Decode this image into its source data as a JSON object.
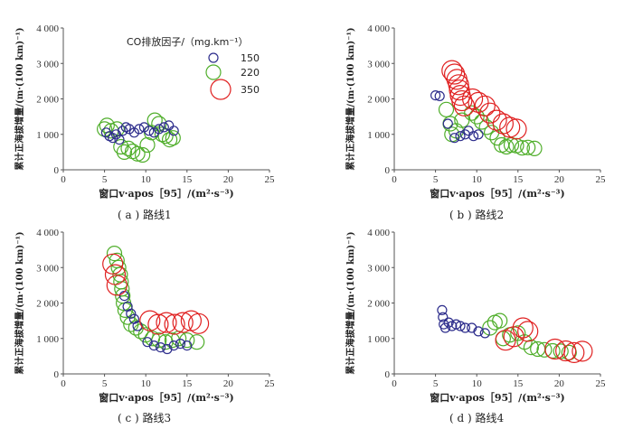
{
  "legend": {
    "title": "CO排放因子/（mg.km⁻¹）",
    "items": [
      {
        "label": "150",
        "color": "#2d2d8c",
        "value": 150
      },
      {
        "label": "220",
        "color": "#4fae2a",
        "value": 220
      },
      {
        "label": "350",
        "color": "#e02020",
        "value": 350
      }
    ]
  },
  "chart_data": [
    {
      "type": "scatter",
      "id": "a",
      "caption": "( a ) 路线1",
      "xlabel": "窗口v·apos［95］/(m²·s⁻³)",
      "ylabel": "累计正海拔增量/(m·(100 km)⁻¹)",
      "xlim": [
        0,
        25
      ],
      "ylim": [
        0,
        4000
      ],
      "xticks": [
        "0",
        "5",
        "10",
        "15",
        "20",
        "25"
      ],
      "yticks": [
        "0",
        "1 000",
        "2 000",
        "3 000",
        "4 000"
      ],
      "series": [
        {
          "name": "150",
          "points": [
            [
              5.2,
              1050
            ],
            [
              5.6,
              950
            ],
            [
              6.0,
              900
            ],
            [
              6.4,
              1000
            ],
            [
              6.8,
              850
            ],
            [
              7.2,
              1100
            ],
            [
              7.6,
              1200
            ],
            [
              8.0,
              1150
            ],
            [
              8.6,
              1050
            ],
            [
              9.2,
              1150
            ],
            [
              9.8,
              1200
            ],
            [
              10.4,
              1100
            ],
            [
              11.0,
              1050
            ],
            [
              11.6,
              1150
            ],
            [
              12.2,
              1200
            ],
            [
              12.8,
              1250
            ],
            [
              13.4,
              1100
            ]
          ]
        },
        {
          "name": "220",
          "points": [
            [
              5.0,
              1150
            ],
            [
              5.3,
              1250
            ],
            [
              5.8,
              1100
            ],
            [
              6.5,
              1150
            ],
            [
              7.0,
              650
            ],
            [
              7.4,
              500
            ],
            [
              7.9,
              600
            ],
            [
              8.4,
              520
            ],
            [
              9.0,
              450
            ],
            [
              9.6,
              420
            ],
            [
              10.2,
              700
            ],
            [
              10.7,
              1050
            ],
            [
              11.1,
              1400
            ],
            [
              11.6,
              1300
            ],
            [
              12.0,
              1000
            ],
            [
              12.4,
              950
            ],
            [
              12.9,
              850
            ],
            [
              13.3,
              900
            ]
          ]
        },
        {
          "name": "350",
          "points": []
        }
      ]
    },
    {
      "type": "scatter",
      "id": "b",
      "caption": "( b ) 路线2",
      "xlabel": "窗口v·apos［95］/(m²·s⁻³)",
      "ylabel": "累计正海拔增量/(m·(100 km)⁻¹)",
      "xlim": [
        0,
        25
      ],
      "ylim": [
        0,
        4000
      ],
      "xticks": [
        "0",
        "5",
        "10",
        "15",
        "20",
        "25"
      ],
      "yticks": [
        "0",
        "1 000",
        "2 000",
        "3 000",
        "4 000"
      ],
      "series": [
        {
          "name": "150",
          "points": [
            [
              5.0,
              2100
            ],
            [
              5.5,
              2080
            ],
            [
              6.5,
              1300
            ],
            [
              7.3,
              900
            ],
            [
              8.0,
              950
            ],
            [
              8.6,
              1000
            ],
            [
              9.0,
              1100
            ],
            [
              9.6,
              950
            ],
            [
              10.2,
              1000
            ]
          ]
        },
        {
          "name": "220",
          "points": [
            [
              6.3,
              1700
            ],
            [
              6.8,
              1300
            ],
            [
              7.0,
              1000
            ],
            [
              7.5,
              1100
            ],
            [
              8.2,
              1400
            ],
            [
              9.4,
              1600
            ],
            [
              10.0,
              1500
            ],
            [
              10.6,
              1350
            ],
            [
              11.2,
              1200
            ],
            [
              11.8,
              1050
            ],
            [
              12.5,
              900
            ],
            [
              13.0,
              700
            ],
            [
              13.6,
              650
            ],
            [
              14.2,
              700
            ],
            [
              14.8,
              680
            ],
            [
              15.5,
              620
            ],
            [
              16.2,
              630
            ],
            [
              17.0,
              600
            ]
          ]
        },
        {
          "name": "350",
          "points": [
            [
              7.0,
              2800
            ],
            [
              7.3,
              2700
            ],
            [
              7.6,
              2550
            ],
            [
              7.8,
              2400
            ],
            [
              7.9,
              2250
            ],
            [
              8.0,
              2100
            ],
            [
              8.2,
              1950
            ],
            [
              8.5,
              1800
            ],
            [
              9.5,
              2000
            ],
            [
              10.2,
              1900
            ],
            [
              11.0,
              1800
            ],
            [
              11.6,
              1600
            ],
            [
              12.4,
              1400
            ],
            [
              13.2,
              1300
            ],
            [
              14.0,
              1200
            ],
            [
              14.8,
              1150
            ]
          ]
        }
      ]
    },
    {
      "type": "scatter",
      "id": "c",
      "caption": "( c ) 路线3",
      "xlabel": "窗口v·apos［95］/(m²·s⁻³)",
      "ylabel": "累计正海拔增量/(m·(100 km)⁻¹)",
      "xlim": [
        0,
        25
      ],
      "ylim": [
        0,
        4000
      ],
      "xticks": [
        "0",
        "5",
        "10",
        "15",
        "20",
        "25"
      ],
      "yticks": [
        "0",
        "1 000",
        "2 000",
        "3 000",
        "4 000"
      ],
      "series": [
        {
          "name": "150",
          "points": [
            [
              7.4,
              2200
            ],
            [
              7.8,
              1900
            ],
            [
              8.2,
              1700
            ],
            [
              8.6,
              1550
            ],
            [
              9.0,
              1350
            ],
            [
              10.2,
              900
            ],
            [
              11.0,
              800
            ],
            [
              11.8,
              750
            ],
            [
              12.6,
              700
            ],
            [
              13.4,
              800
            ],
            [
              14.2,
              850
            ],
            [
              15.0,
              800
            ]
          ]
        },
        {
          "name": "220",
          "points": [
            [
              6.2,
              3400
            ],
            [
              6.5,
              3200
            ],
            [
              6.7,
              3000
            ],
            [
              6.9,
              2800
            ],
            [
              7.0,
              2600
            ],
            [
              7.1,
              2400
            ],
            [
              7.2,
              2200
            ],
            [
              7.3,
              2000
            ],
            [
              7.5,
              1800
            ],
            [
              7.8,
              1600
            ],
            [
              8.2,
              1400
            ],
            [
              8.8,
              1300
            ],
            [
              9.4,
              1200
            ],
            [
              10.0,
              1100
            ],
            [
              10.8,
              1000
            ],
            [
              11.6,
              950
            ],
            [
              12.4,
              900
            ],
            [
              13.2,
              950
            ],
            [
              14.0,
              1000
            ],
            [
              15.0,
              950
            ],
            [
              16.2,
              900
            ]
          ]
        },
        {
          "name": "350",
          "points": [
            [
              6.0,
              3100
            ],
            [
              6.3,
              2800
            ],
            [
              6.5,
              2500
            ],
            [
              10.5,
              1500
            ],
            [
              11.5,
              1400
            ],
            [
              12.5,
              1450
            ],
            [
              13.5,
              1400
            ],
            [
              14.5,
              1450
            ],
            [
              15.5,
              1500
            ],
            [
              16.4,
              1420
            ]
          ]
        }
      ]
    },
    {
      "type": "scatter",
      "id": "d",
      "caption": "( d ) 路线4",
      "xlabel": "窗口v·apos［95］/(m²·s⁻³)",
      "ylabel": "累计正海拔增量/(m·(100 km)⁻¹)",
      "xlim": [
        0,
        25
      ],
      "ylim": [
        0,
        4000
      ],
      "xticks": [
        "0",
        "5",
        "10",
        "15",
        "20",
        "25"
      ],
      "yticks": [
        "0",
        "1 000",
        "2 000",
        "3 000",
        "4 000"
      ],
      "series": [
        {
          "name": "150",
          "points": [
            [
              5.8,
              1800
            ],
            [
              5.9,
              1600
            ],
            [
              6.0,
              1400
            ],
            [
              6.2,
              1300
            ],
            [
              6.6,
              1450
            ],
            [
              7.0,
              1350
            ],
            [
              7.5,
              1400
            ],
            [
              8.0,
              1350
            ],
            [
              8.6,
              1300
            ],
            [
              9.4,
              1300
            ],
            [
              10.2,
              1200
            ],
            [
              11.0,
              1150
            ]
          ]
        },
        {
          "name": "220",
          "points": [
            [
              11.6,
              1300
            ],
            [
              12.2,
              1450
            ],
            [
              12.8,
              1500
            ],
            [
              13.2,
              1000
            ],
            [
              14.0,
              1100
            ],
            [
              15.0,
              1150
            ],
            [
              15.8,
              900
            ],
            [
              16.6,
              750
            ],
            [
              17.4,
              700
            ],
            [
              18.2,
              680
            ],
            [
              19.2,
              650
            ],
            [
              20.2,
              640
            ],
            [
              21.2,
              600
            ]
          ]
        },
        {
          "name": "350",
          "points": [
            [
              13.5,
              950
            ],
            [
              14.5,
              1050
            ],
            [
              15.6,
              1300
            ],
            [
              16.2,
              1200
            ],
            [
              19.5,
              700
            ],
            [
              20.8,
              650
            ],
            [
              21.8,
              600
            ],
            [
              22.8,
              640
            ]
          ]
        }
      ]
    }
  ]
}
